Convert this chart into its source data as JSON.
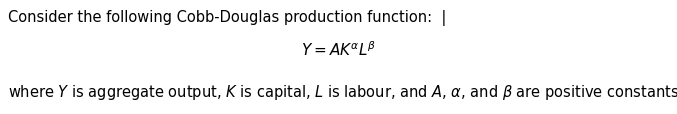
{
  "line1": "Consider the following Cobb-Douglas production function:  |",
  "line2": "$Y = AK^{\\alpha}L^{\\beta}$",
  "line3": "where $Y$ is aggregate output, $K$ is capital, $L$ is labour, and $A$, $\\alpha$, and $\\beta$ are positive constants.",
  "bg_color": "#ffffff",
  "text_color": "#000000",
  "fontsize_line1": 10.5,
  "fontsize_line2": 11,
  "fontsize_line3": 10.5,
  "fig_width": 6.77,
  "fig_height": 1.15
}
